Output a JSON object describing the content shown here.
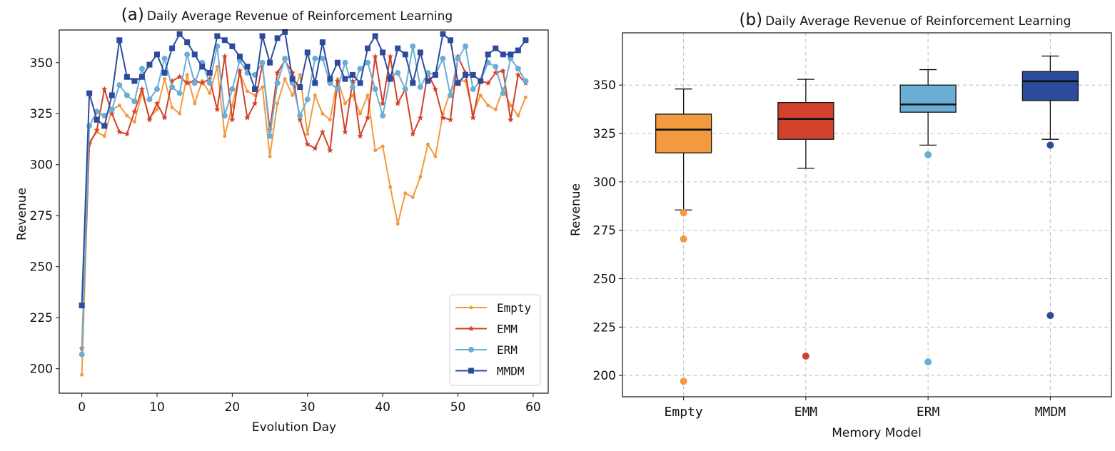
{
  "chart_data": [
    {
      "type": "line",
      "title_prefix": "(a)",
      "title": "Daily Average Revenue of Reinforcement Learning",
      "xlabel": "Evolution Day",
      "ylabel": "Revenue",
      "xlim": [
        -3,
        62
      ],
      "ylim": [
        188,
        366
      ],
      "xticks": [
        0,
        10,
        20,
        30,
        40,
        50,
        60
      ],
      "yticks": [
        200,
        225,
        250,
        275,
        300,
        325,
        350
      ],
      "legend_position": "lower right",
      "grid": false,
      "series": [
        {
          "name": "Empty",
          "color": "#f39a3e",
          "marker": "dot",
          "values": [
            197,
            311,
            316,
            314,
            327,
            329,
            324,
            321,
            335,
            323,
            327,
            342,
            328,
            325,
            344,
            330,
            341,
            335,
            348,
            314,
            329,
            345,
            336,
            334,
            338,
            304,
            330,
            342,
            334,
            344,
            315,
            334,
            325,
            322,
            342,
            330,
            334,
            325,
            334,
            307,
            309,
            289,
            271,
            286,
            284,
            294,
            310,
            304,
            325,
            336,
            341,
            341,
            325,
            334,
            329,
            327,
            337,
            329,
            324,
            333
          ]
        },
        {
          "name": "EMM",
          "color": "#d2412c",
          "marker": "star",
          "values": [
            210,
            310,
            317,
            337,
            325,
            316,
            315,
            326,
            337,
            322,
            330,
            323,
            341,
            343,
            340,
            341,
            340,
            342,
            327,
            353,
            322,
            346,
            323,
            330,
            349,
            317,
            345,
            351,
            345,
            322,
            310,
            308,
            316,
            307,
            341,
            316,
            341,
            314,
            323,
            353,
            330,
            353,
            330,
            337,
            315,
            323,
            345,
            337,
            323,
            322,
            353,
            345,
            323,
            341,
            340,
            345,
            346,
            322,
            344,
            340
          ]
        },
        {
          "name": "ERM",
          "color": "#6aaed6",
          "marker": "circle",
          "values": [
            207,
            319,
            326,
            324,
            327,
            339,
            334,
            331,
            347,
            332,
            337,
            352,
            338,
            335,
            354,
            340,
            350,
            340,
            358,
            324,
            337,
            351,
            345,
            344,
            350,
            314,
            340,
            352,
            340,
            324,
            332,
            352,
            352,
            340,
            337,
            350,
            338,
            347,
            350,
            337,
            324,
            343,
            345,
            337,
            358,
            338,
            345,
            344,
            352,
            334,
            352,
            358,
            337,
            341,
            350,
            348,
            335,
            352,
            347,
            341
          ]
        },
        {
          "name": "MMDM",
          "color": "#2c4b9c",
          "marker": "square",
          "values": [
            231,
            335,
            322,
            319,
            334,
            361,
            343,
            341,
            343,
            349,
            354,
            345,
            357,
            364,
            360,
            354,
            348,
            345,
            363,
            361,
            358,
            353,
            348,
            337,
            363,
            350,
            362,
            365,
            342,
            338,
            355,
            340,
            360,
            342,
            350,
            342,
            344,
            340,
            357,
            363,
            355,
            342,
            357,
            354,
            340,
            355,
            341,
            344,
            364,
            361,
            340,
            344,
            344,
            341,
            354,
            357,
            354,
            354,
            356,
            361
          ]
        }
      ]
    },
    {
      "type": "box",
      "title_prefix": "(b)",
      "title": "Daily Average Revenue of Reinforcement Learning",
      "xlabel": "Memory Model",
      "ylabel": "Revenue",
      "ylim": [
        189,
        377
      ],
      "yticks": [
        200,
        225,
        250,
        275,
        300,
        325,
        350
      ],
      "grid": true,
      "categories": [
        "Empty",
        "EMM",
        "ERM",
        "MMDM"
      ],
      "boxes": [
        {
          "name": "Empty",
          "color": "#f39a3e",
          "whisker_low": 285.5,
          "q1": 315,
          "median": 327,
          "q3": 335,
          "whisker_high": 348,
          "outliers": [
            284,
            270.5,
            197
          ]
        },
        {
          "name": "EMM",
          "color": "#d2412c",
          "whisker_low": 307,
          "q1": 322,
          "median": 332.5,
          "q3": 341,
          "whisker_high": 353,
          "outliers": [
            210
          ]
        },
        {
          "name": "ERM",
          "color": "#6aaed6",
          "whisker_low": 319,
          "q1": 336,
          "median": 340,
          "q3": 350,
          "whisker_high": 358,
          "outliers": [
            314,
            207
          ]
        },
        {
          "name": "MMDM",
          "color": "#2c4b9c",
          "whisker_low": 322,
          "q1": 342,
          "median": 352,
          "q3": 357,
          "whisker_high": 365,
          "outliers": [
            319,
            231
          ]
        }
      ]
    }
  ]
}
